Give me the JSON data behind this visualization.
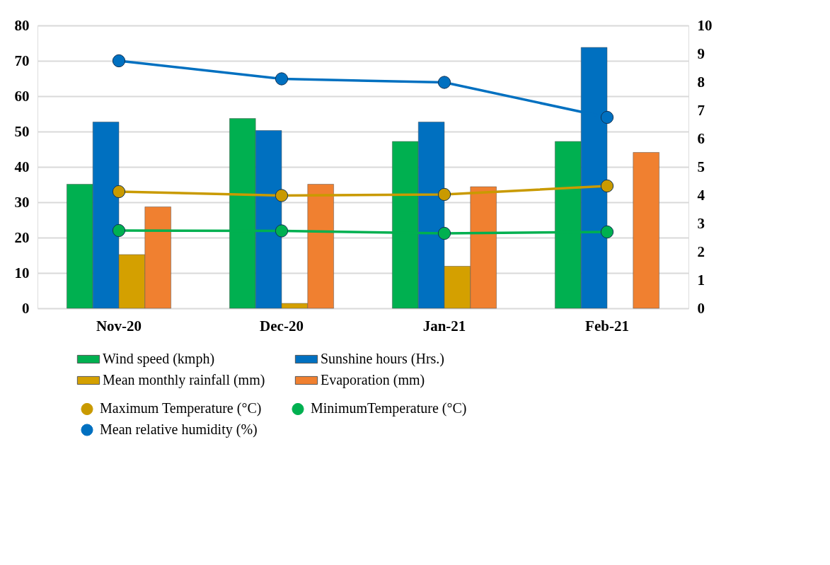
{
  "chart_data": {
    "type": "bar",
    "categories": [
      "Nov-20",
      "Dec-20",
      "Jan-21",
      "Feb-21"
    ],
    "series": [
      {
        "name": "Wind speed (kmph)",
        "color": "#00b050",
        "values": [
          35.1,
          53.7,
          47.2,
          47.2
        ]
      },
      {
        "name": "Sunshine hours (Hrs.)",
        "color": "#0070c0",
        "values": [
          52.7,
          50.3,
          52.7,
          73.8
        ]
      },
      {
        "name": "Mean monthly rainfall (mm)",
        "color": "#d4a000",
        "values": [
          15.2,
          1.4,
          11.9,
          null
        ]
      },
      {
        "name": "Evaporation (mm)",
        "color": "#f08030",
        "values": [
          28.7,
          35.1,
          34.4,
          44.1
        ]
      },
      {
        "name": "Maximum Temperature (°C)",
        "type": "line",
        "color": "#c99a00",
        "values": [
          33.0,
          31.9,
          32.2,
          34.6
        ]
      },
      {
        "name": "MinimumTemperature (°C)",
        "type": "line",
        "color": "#00b050",
        "values": [
          22.0,
          21.9,
          21.2,
          21.6
        ]
      },
      {
        "name": "Mean relative humidity (%)",
        "type": "line",
        "color": "#0070c0",
        "values": [
          70.0,
          64.9,
          63.9,
          54.0
        ]
      }
    ],
    "ylim": [
      0,
      80
    ],
    "yticks": [
      0,
      10,
      20,
      30,
      40,
      50,
      60,
      70,
      80
    ],
    "y2lim": [
      0,
      10
    ],
    "y2ticks": [
      0,
      1,
      2,
      3,
      4,
      5,
      6,
      7,
      8,
      9,
      10
    ],
    "grid": "y",
    "legend": "bottom",
    "marker": "circle",
    "line_style": "solid"
  }
}
